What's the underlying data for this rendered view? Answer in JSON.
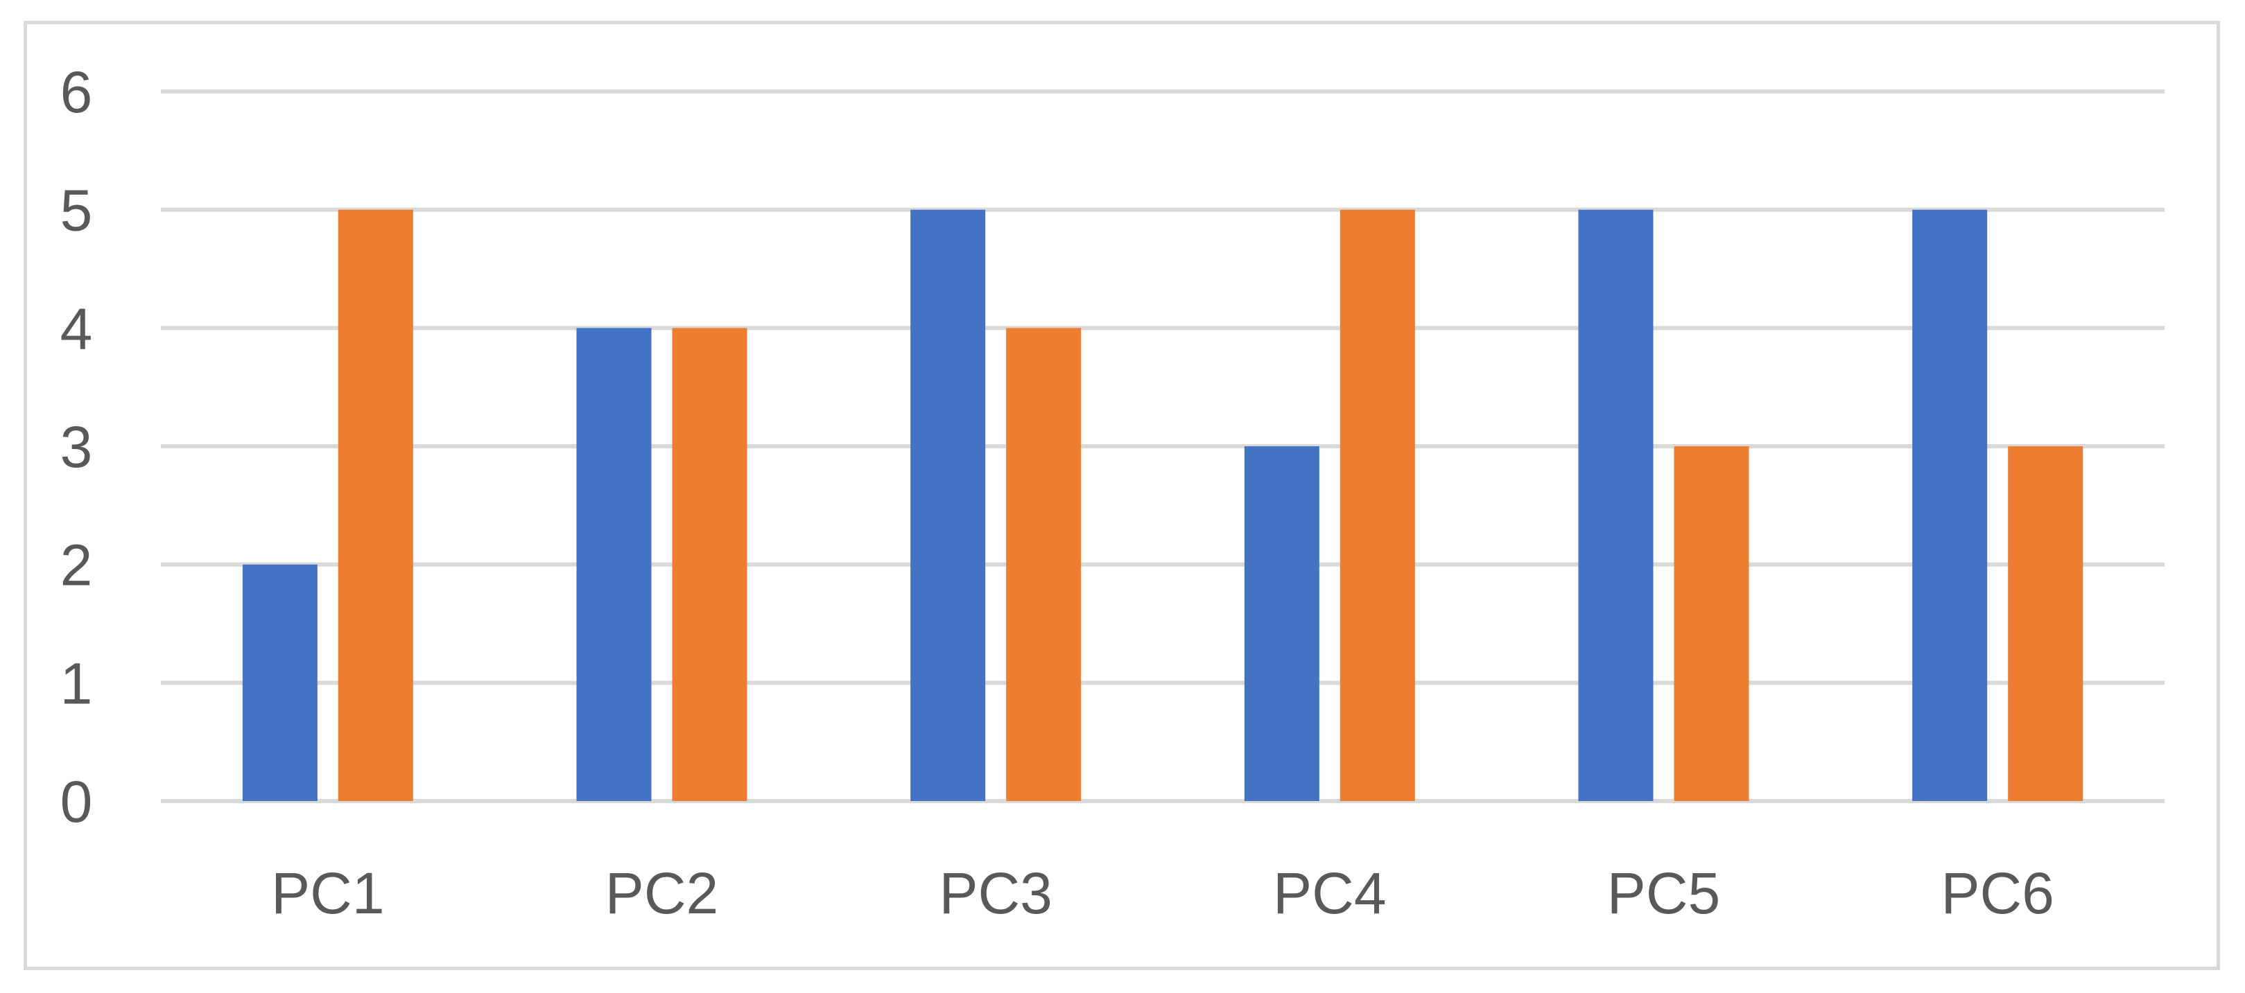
{
  "chart_data": {
    "type": "bar",
    "categories": [
      "PC1",
      "PC2",
      "PC3",
      "PC4",
      "PC5",
      "PC6"
    ],
    "series": [
      {
        "values": [
          2,
          4,
          5,
          3,
          5,
          5
        ],
        "color": "#4472c4"
      },
      {
        "values": [
          5,
          4,
          4,
          5,
          3,
          3
        ],
        "color": "#ed7d31"
      }
    ],
    "title": "",
    "xlabel": "",
    "ylabel": "",
    "ylim": [
      0,
      6
    ],
    "yticks": [
      "0",
      "1",
      "2",
      "3",
      "4",
      "5",
      "6"
    ],
    "grid": true,
    "legend": "none",
    "gridline_color": "#d9d9d9",
    "text_color": "#595959"
  }
}
